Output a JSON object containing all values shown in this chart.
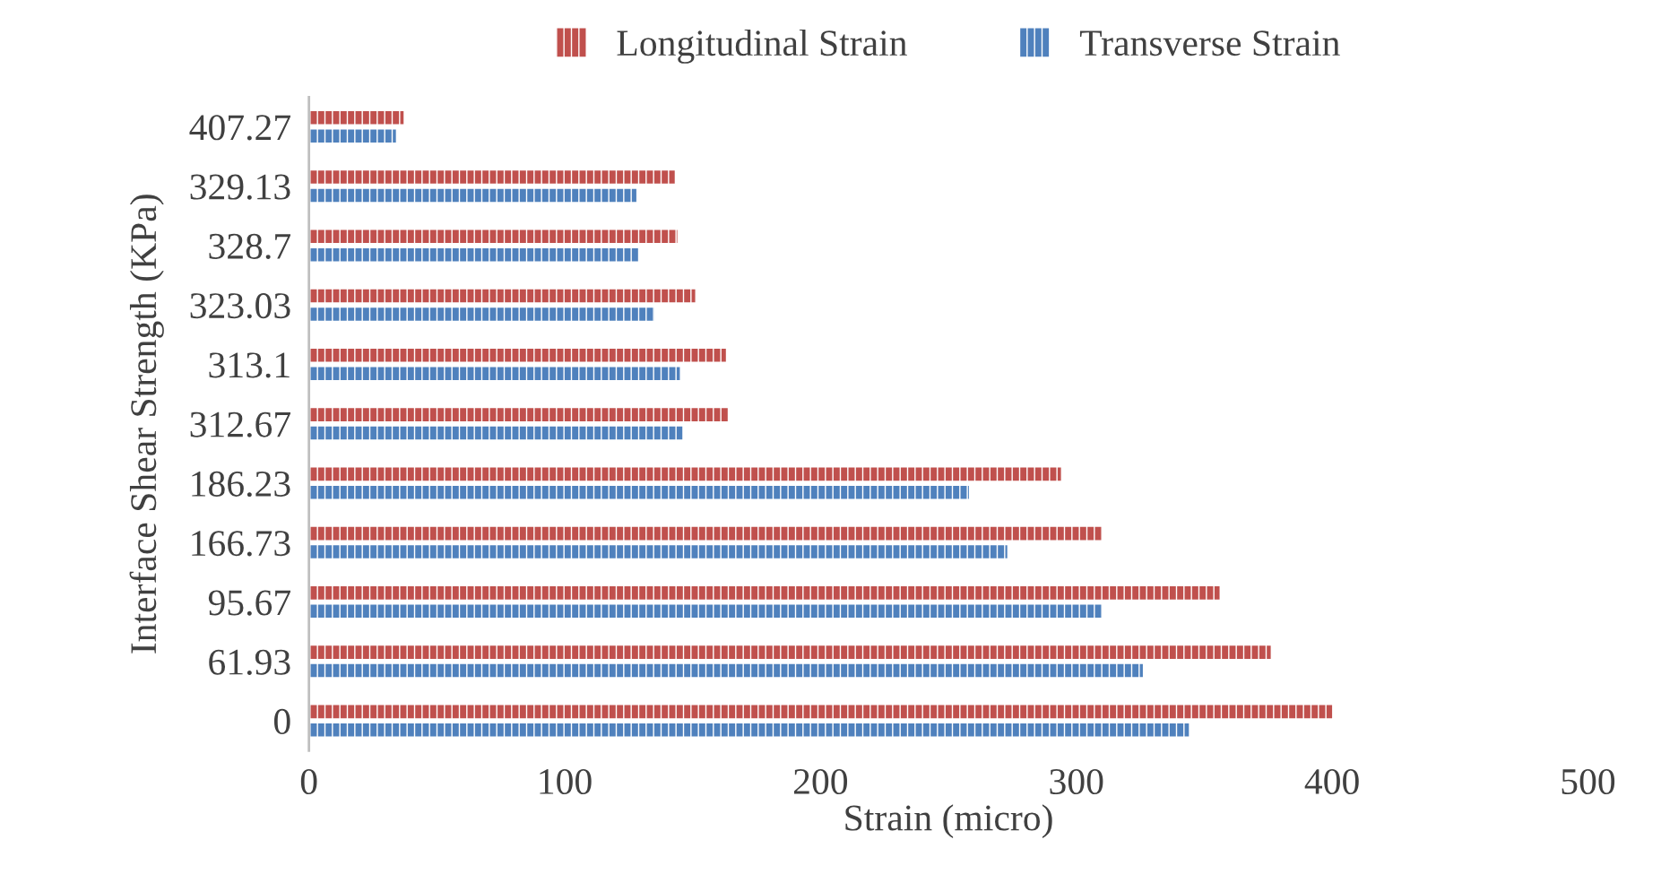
{
  "chart_data": {
    "type": "bar",
    "orientation": "horizontal",
    "xlabel": "Strain (micro)",
    "ylabel": "Interface Shear Strength (KPa)",
    "categories": [
      "407.27",
      "329.13",
      "328.7",
      "323.03",
      "313.1",
      "312.67",
      "186.23",
      "166.73",
      "95.67",
      "61.93",
      "0"
    ],
    "series": [
      {
        "name": "Longitudinal Strain",
        "color": "#c0504d",
        "values": [
          37,
          143,
          144,
          151,
          163,
          164,
          294,
          310,
          356,
          376,
          400
        ]
      },
      {
        "name": "Transverse Strain",
        "color": "#4f81bd",
        "values": [
          34,
          128,
          129,
          135,
          145,
          146,
          258,
          273,
          310,
          326,
          344
        ]
      }
    ],
    "xlim": [
      0,
      500
    ],
    "xticks": [
      0,
      100,
      200,
      300,
      400,
      500
    ],
    "grid": false,
    "legend": "top"
  }
}
